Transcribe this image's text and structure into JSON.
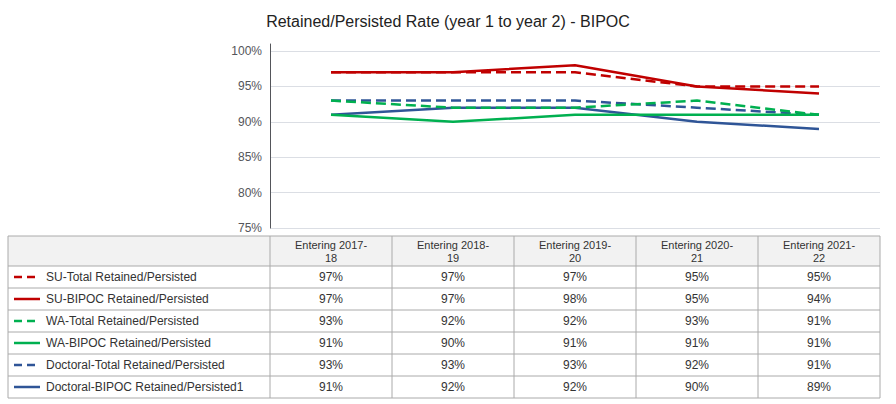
{
  "chart_data": {
    "type": "line",
    "title": "Retained/Persisted Rate (year 1 to year 2) - BIPOC",
    "categories": [
      "Entering 2017-\n18",
      "Entering 2018-\n19",
      "Entering 2019-\n20",
      "Entering 2020-\n21",
      "Entering 2021-\n22"
    ],
    "series": [
      {
        "name": "SU-Total Retained/Persisted",
        "color": "#C00000",
        "line_style": "dashed",
        "values": [
          97,
          97,
          97,
          95,
          95
        ],
        "value_labels": [
          "97%",
          "97%",
          "97%",
          "95%",
          "95%"
        ]
      },
      {
        "name": "SU-BIPOC Retained/Persisted",
        "color": "#C00000",
        "line_style": "solid",
        "values": [
          97,
          97,
          98,
          95,
          94
        ],
        "value_labels": [
          "97%",
          "97%",
          "98%",
          "95%",
          "94%"
        ]
      },
      {
        "name": "WA-Total Retained/Persisted",
        "color": "#00B050",
        "line_style": "dashed",
        "values": [
          93,
          92,
          92,
          93,
          91
        ],
        "value_labels": [
          "93%",
          "92%",
          "92%",
          "93%",
          "91%"
        ]
      },
      {
        "name": "WA-BIPOC Retained/Persisted",
        "color": "#00B050",
        "line_style": "solid",
        "values": [
          91,
          90,
          91,
          91,
          91
        ],
        "value_labels": [
          "91%",
          "90%",
          "91%",
          "91%",
          "91%"
        ]
      },
      {
        "name": "Doctoral-Total Retained/Persisted",
        "color": "#2F5597",
        "line_style": "dashed",
        "values": [
          93,
          93,
          93,
          92,
          91
        ],
        "value_labels": [
          "93%",
          "93%",
          "93%",
          "92%",
          "91%"
        ]
      },
      {
        "name": "Doctoral-BIPOC Retained/Persisted1",
        "color": "#2F5597",
        "line_style": "solid",
        "values": [
          91,
          92,
          92,
          90,
          89
        ],
        "value_labels": [
          "91%",
          "92%",
          "92%",
          "90%",
          "89%"
        ]
      }
    ],
    "ylim": [
      75,
      101
    ],
    "yticks": [
      {
        "value": 75,
        "label": "75%"
      },
      {
        "value": 80,
        "label": "80%"
      },
      {
        "value": 85,
        "label": "85%"
      },
      {
        "value": 90,
        "label": "90%"
      },
      {
        "value": 95,
        "label": "95%"
      },
      {
        "value": 100,
        "label": "100%"
      }
    ],
    "grid": true,
    "tick_labels": "y"
  }
}
